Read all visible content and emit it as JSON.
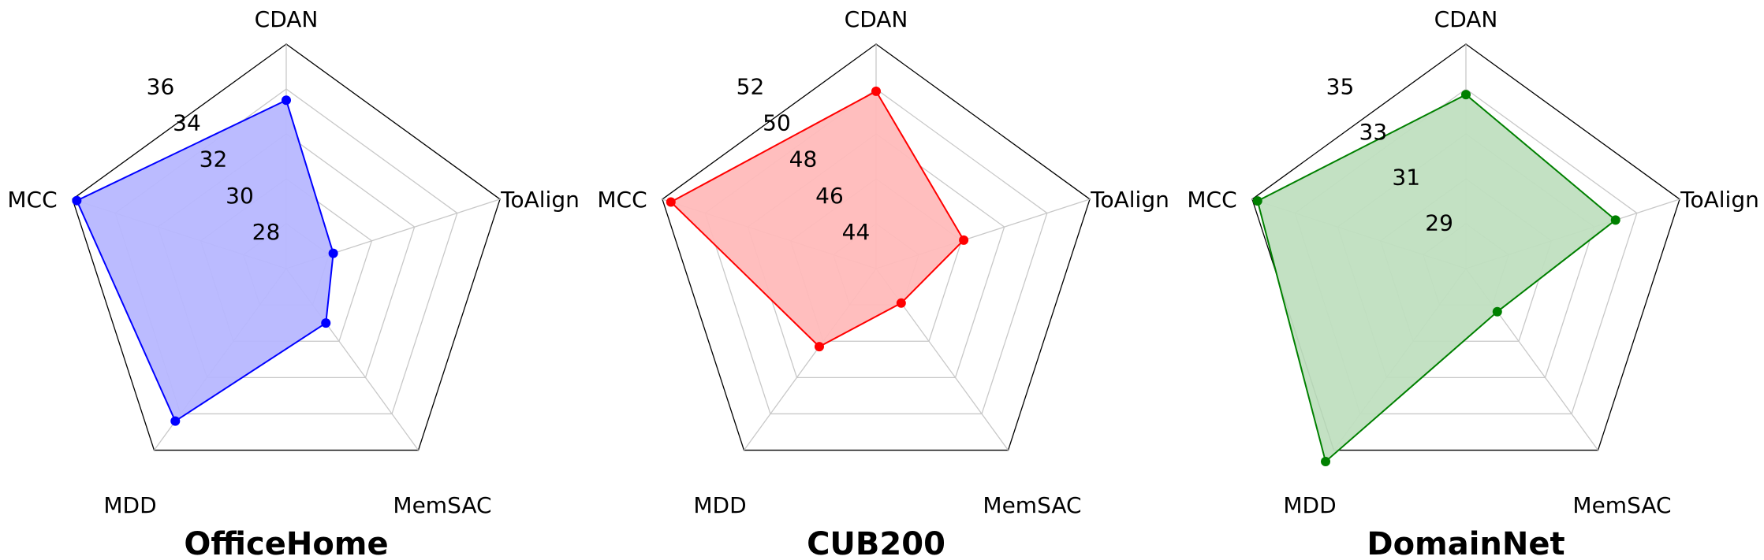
{
  "chart_data": [
    {
      "type": "radar",
      "title": "OfficeHome",
      "axes": [
        "CDAN",
        "ToAlign",
        "MemSAC",
        "MDD",
        "MCC"
      ],
      "values": [
        33.5,
        28.2,
        29.0,
        34.4,
        35.8
      ],
      "ticks": [
        28,
        30,
        32,
        34,
        36
      ],
      "rlim": [
        26,
        36
      ],
      "color": "#0000ff",
      "fill_color": "#b7b7ff"
    },
    {
      "type": "radar",
      "title": "CUB200",
      "axes": [
        "CDAN",
        "ToAlign",
        "MemSAC",
        "MDD",
        "MCC"
      ],
      "values": [
        49.9,
        46.1,
        43.9,
        46.3,
        51.6
      ],
      "ticks": [
        44,
        46,
        48,
        50,
        52
      ],
      "rlim": [
        42,
        52
      ],
      "color": "#ff0000",
      "fill_color": "#ffbbbb"
    },
    {
      "type": "radar",
      "title": "DomainNet",
      "axes": [
        "CDAN",
        "ToAlign",
        "MemSAC",
        "MDD",
        "MCC"
      ],
      "values": [
        33.2,
        32.6,
        28.9,
        35.5,
        34.8
      ],
      "ticks": [
        29,
        31,
        33,
        35
      ],
      "rlim": [
        27,
        35
      ],
      "color": "#008000",
      "fill_color": "#c0dfc0"
    }
  ]
}
